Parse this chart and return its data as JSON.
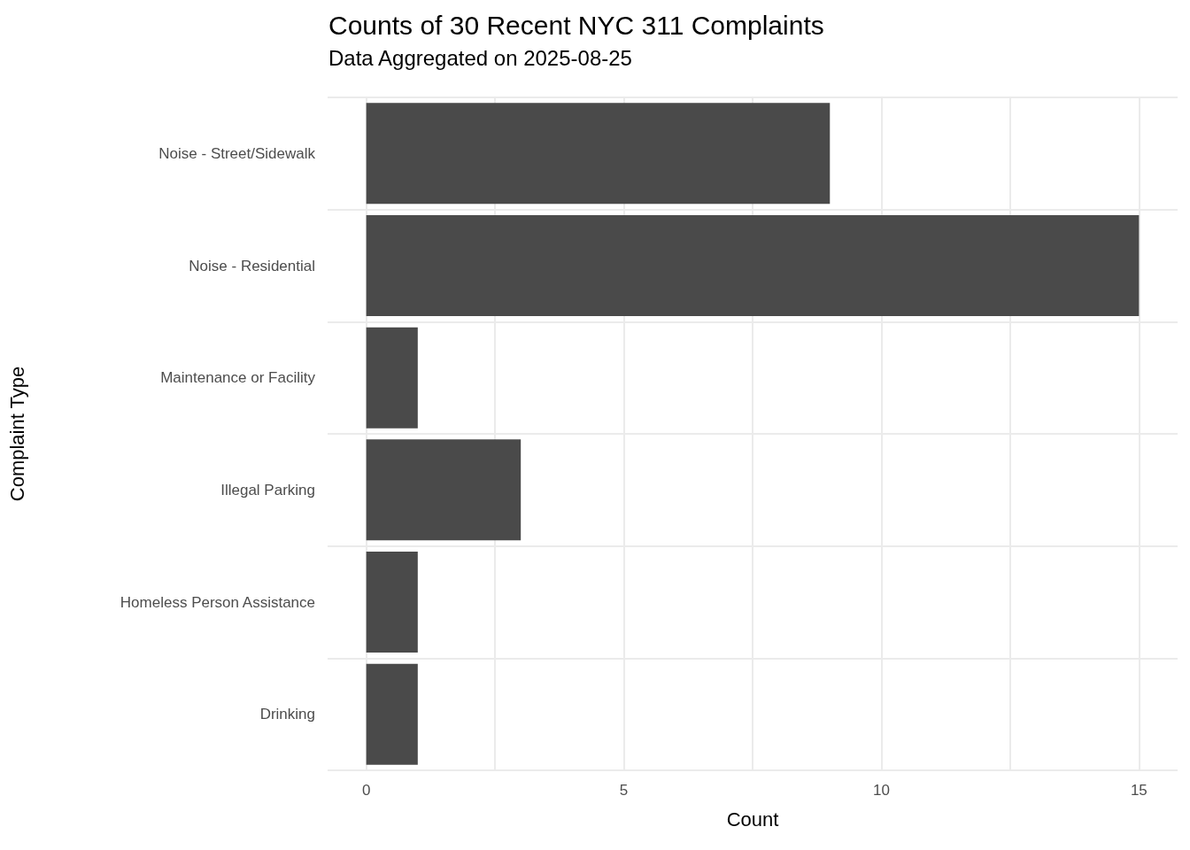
{
  "chart_data": {
    "type": "bar",
    "orientation": "horizontal",
    "title": "Counts of 30 Recent NYC 311 Complaints",
    "subtitle": "Data Aggregated on 2025-08-25",
    "xlabel": "Count",
    "ylabel": "Complaint Type",
    "categories": [
      "Noise - Street/Sidewalk",
      "Noise - Residential",
      "Maintenance or Facility",
      "Illegal Parking",
      "Homeless Person Assistance",
      "Drinking"
    ],
    "values": [
      9,
      15,
      1,
      3,
      1,
      1
    ],
    "color": "#4a4a4a",
    "xlim": [
      -0.75,
      15.75
    ],
    "xticks": [
      0,
      {
        "value": 2.5,
        "label": null
      },
      5,
      {
        "value": 7.5,
        "label": null
      },
      10,
      {
        "value": 12.5,
        "label": null
      },
      15
    ],
    "grid": true
  }
}
